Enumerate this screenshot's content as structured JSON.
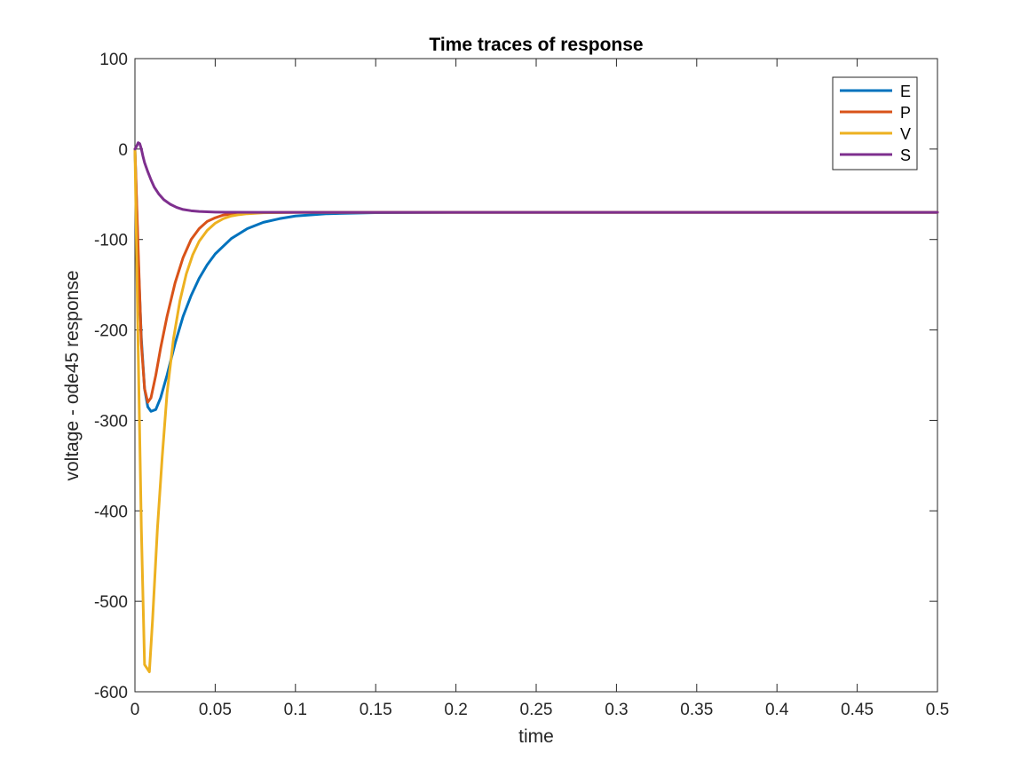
{
  "chart_data": {
    "type": "line",
    "title": "Time traces of response",
    "xlabel": "time",
    "ylabel": "voltage - ode45 response",
    "xlim": [
      0,
      0.5
    ],
    "ylim": [
      -600,
      100
    ],
    "xticks": [
      0,
      0.05,
      0.1,
      0.15,
      0.2,
      0.25,
      0.3,
      0.35,
      0.4,
      0.45,
      0.5
    ],
    "xtick_labels": [
      "0",
      "0.05",
      "0.1",
      "0.15",
      "0.2",
      "0.25",
      "0.3",
      "0.35",
      "0.4",
      "0.45",
      "0.5"
    ],
    "yticks": [
      100,
      0,
      -100,
      -200,
      -300,
      -400,
      -500,
      -600
    ],
    "ytick_labels": [
      "100",
      "0",
      "-100",
      "-200",
      "-300",
      "-400",
      "-500",
      "-600"
    ],
    "grid": false,
    "legend_position": "top-right",
    "series": [
      {
        "name": "E",
        "color": "#0072BD",
        "x": [
          0,
          0.002,
          0.004,
          0.006,
          0.008,
          0.01,
          0.013,
          0.016,
          0.02,
          0.025,
          0.03,
          0.035,
          0.04,
          0.045,
          0.05,
          0.06,
          0.07,
          0.08,
          0.09,
          0.1,
          0.12,
          0.15,
          0.2,
          0.3,
          0.4,
          0.5
        ],
        "y": [
          0,
          -120,
          -210,
          -265,
          -285,
          -290,
          -288,
          -275,
          -250,
          -215,
          -185,
          -162,
          -143,
          -128,
          -116,
          -99,
          -88,
          -81,
          -77,
          -74,
          -71.5,
          -70.3,
          -70,
          -70,
          -70,
          -70
        ]
      },
      {
        "name": "P",
        "color": "#D95319",
        "x": [
          0,
          0.002,
          0.004,
          0.006,
          0.008,
          0.01,
          0.013,
          0.016,
          0.02,
          0.025,
          0.03,
          0.035,
          0.04,
          0.045,
          0.05,
          0.055,
          0.06,
          0.07,
          0.08,
          0.1,
          0.15,
          0.2,
          0.3,
          0.4,
          0.5
        ],
        "y": [
          0,
          -110,
          -215,
          -265,
          -280,
          -275,
          -250,
          -220,
          -185,
          -148,
          -120,
          -100,
          -88,
          -80,
          -76,
          -73,
          -71.8,
          -70.6,
          -70.2,
          -70,
          -70,
          -70,
          -70,
          -70,
          -70
        ]
      },
      {
        "name": "V",
        "color": "#EDB120",
        "x": [
          0,
          0.002,
          0.004,
          0.006,
          0.009,
          0.011,
          0.014,
          0.017,
          0.02,
          0.024,
          0.028,
          0.032,
          0.036,
          0.04,
          0.045,
          0.05,
          0.055,
          0.06,
          0.065,
          0.07,
          0.08,
          0.1,
          0.15,
          0.2,
          0.3,
          0.4,
          0.5
        ],
        "y": [
          0,
          -220,
          -420,
          -570,
          -578,
          -520,
          -420,
          -340,
          -270,
          -210,
          -168,
          -138,
          -117,
          -102,
          -90,
          -82,
          -77,
          -74,
          -72.5,
          -71.5,
          -70.5,
          -70,
          -70,
          -70,
          -70,
          -70,
          -70
        ]
      },
      {
        "name": "S",
        "color": "#7E2F8E",
        "x": [
          0,
          0.001,
          0.002,
          0.003,
          0.004,
          0.005,
          0.006,
          0.008,
          0.01,
          0.012,
          0.015,
          0.018,
          0.022,
          0.026,
          0.03,
          0.035,
          0.04,
          0.045,
          0.05,
          0.06,
          0.08,
          0.1,
          0.2,
          0.3,
          0.4,
          0.5
        ],
        "y": [
          0,
          3,
          7,
          6,
          0,
          -8,
          -15,
          -25,
          -34,
          -42,
          -50,
          -56,
          -61,
          -64.5,
          -66.8,
          -68.2,
          -69,
          -69.4,
          -69.7,
          -69.9,
          -70,
          -70,
          -70,
          -70,
          -70,
          -70
        ]
      }
    ]
  }
}
